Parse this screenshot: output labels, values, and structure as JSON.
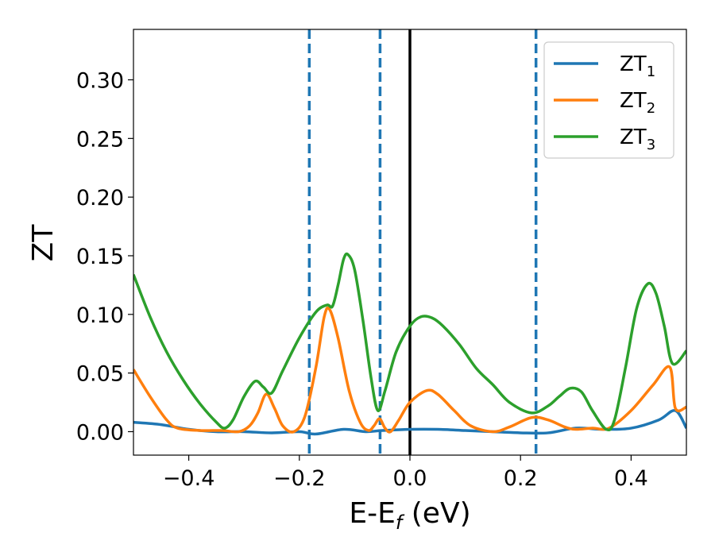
{
  "chart_data": {
    "type": "line",
    "xlabel": "E-E",
    "xlabel_sub": "f",
    "xlabel_unit": " (eV)",
    "ylabel": "ZT",
    "xlim": [
      -0.5,
      0.5
    ],
    "ylim": [
      -0.02,
      0.343
    ],
    "xticks": [
      -0.4,
      -0.2,
      0.0,
      0.2,
      0.4
    ],
    "xtick_labels": [
      "−0.4",
      "−0.2",
      "0.0",
      "0.2",
      "0.4"
    ],
    "yticks": [
      0.0,
      0.05,
      0.1,
      0.15,
      0.2,
      0.25,
      0.3
    ],
    "ytick_labels": [
      "0.00",
      "0.05",
      "0.10",
      "0.15",
      "0.20",
      "0.25",
      "0.30"
    ],
    "grid": false,
    "legend_position": "top-right",
    "vlines": [
      {
        "x": -0.182,
        "style": "dashed",
        "color": "#1f77b4"
      },
      {
        "x": -0.054,
        "style": "dashed",
        "color": "#1f77b4"
      },
      {
        "x": 0.0,
        "style": "solid",
        "color": "#000000"
      },
      {
        "x": 0.228,
        "style": "dashed",
        "color": "#1f77b4"
      }
    ],
    "series": [
      {
        "name": "ZT",
        "name_sub": "1",
        "color": "#1f77b4",
        "points": [
          [
            -0.5,
            0.008
          ],
          [
            -0.45,
            0.006
          ],
          [
            -0.4,
            0.002
          ],
          [
            -0.35,
            0.0
          ],
          [
            -0.3,
            0.0
          ],
          [
            -0.25,
            -0.001
          ],
          [
            -0.2,
            0.0
          ],
          [
            -0.17,
            -0.002
          ],
          [
            -0.12,
            0.002
          ],
          [
            -0.08,
            0.0
          ],
          [
            -0.05,
            0.001
          ],
          [
            0.0,
            0.002
          ],
          [
            0.05,
            0.002
          ],
          [
            0.1,
            0.001
          ],
          [
            0.15,
            0.0
          ],
          [
            0.2,
            -0.001
          ],
          [
            0.25,
            -0.001
          ],
          [
            0.3,
            0.003
          ],
          [
            0.35,
            0.002
          ],
          [
            0.4,
            0.003
          ],
          [
            0.45,
            0.01
          ],
          [
            0.48,
            0.018
          ],
          [
            0.5,
            0.003
          ]
        ]
      },
      {
        "name": "ZT",
        "name_sub": "2",
        "color": "#ff7f0e",
        "points": [
          [
            -0.5,
            0.053
          ],
          [
            -0.47,
            0.03
          ],
          [
            -0.44,
            0.01
          ],
          [
            -0.42,
            0.003
          ],
          [
            -0.38,
            0.001
          ],
          [
            -0.34,
            0.001
          ],
          [
            -0.31,
            0.0
          ],
          [
            -0.29,
            0.005
          ],
          [
            -0.275,
            0.016
          ],
          [
            -0.26,
            0.032
          ],
          [
            -0.245,
            0.02
          ],
          [
            -0.23,
            0.005
          ],
          [
            -0.21,
            0.0
          ],
          [
            -0.19,
            0.013
          ],
          [
            -0.17,
            0.055
          ],
          [
            -0.155,
            0.098
          ],
          [
            -0.145,
            0.104
          ],
          [
            -0.13,
            0.08
          ],
          [
            -0.11,
            0.035
          ],
          [
            -0.09,
            0.008
          ],
          [
            -0.075,
            0.001
          ],
          [
            -0.065,
            0.005
          ],
          [
            -0.055,
            0.011
          ],
          [
            -0.045,
            0.003
          ],
          [
            -0.035,
            0.0
          ],
          [
            -0.02,
            0.01
          ],
          [
            0.0,
            0.025
          ],
          [
            0.03,
            0.035
          ],
          [
            0.05,
            0.032
          ],
          [
            0.08,
            0.018
          ],
          [
            0.11,
            0.005
          ],
          [
            0.15,
            0.0
          ],
          [
            0.18,
            0.004
          ],
          [
            0.22,
            0.012
          ],
          [
            0.25,
            0.01
          ],
          [
            0.28,
            0.004
          ],
          [
            0.3,
            0.002
          ],
          [
            0.33,
            0.003
          ],
          [
            0.36,
            0.003
          ],
          [
            0.4,
            0.018
          ],
          [
            0.44,
            0.04
          ],
          [
            0.47,
            0.055
          ],
          [
            0.48,
            0.02
          ],
          [
            0.5,
            0.021
          ]
        ]
      },
      {
        "name": "ZT",
        "name_sub": "3",
        "color": "#2ca02c",
        "points": [
          [
            -0.5,
            0.134
          ],
          [
            -0.47,
            0.098
          ],
          [
            -0.44,
            0.068
          ],
          [
            -0.41,
            0.044
          ],
          [
            -0.38,
            0.024
          ],
          [
            -0.35,
            0.008
          ],
          [
            -0.335,
            0.003
          ],
          [
            -0.32,
            0.01
          ],
          [
            -0.3,
            0.03
          ],
          [
            -0.28,
            0.043
          ],
          [
            -0.265,
            0.038
          ],
          [
            -0.25,
            0.033
          ],
          [
            -0.23,
            0.052
          ],
          [
            -0.2,
            0.08
          ],
          [
            -0.17,
            0.102
          ],
          [
            -0.15,
            0.108
          ],
          [
            -0.14,
            0.107
          ],
          [
            -0.13,
            0.125
          ],
          [
            -0.12,
            0.147
          ],
          [
            -0.112,
            0.151
          ],
          [
            -0.1,
            0.138
          ],
          [
            -0.085,
            0.095
          ],
          [
            -0.07,
            0.045
          ],
          [
            -0.058,
            0.018
          ],
          [
            -0.045,
            0.035
          ],
          [
            -0.025,
            0.068
          ],
          [
            0.0,
            0.09
          ],
          [
            0.02,
            0.098
          ],
          [
            0.04,
            0.097
          ],
          [
            0.06,
            0.09
          ],
          [
            0.09,
            0.074
          ],
          [
            0.12,
            0.054
          ],
          [
            0.15,
            0.04
          ],
          [
            0.18,
            0.025
          ],
          [
            0.22,
            0.016
          ],
          [
            0.25,
            0.022
          ],
          [
            0.27,
            0.03
          ],
          [
            0.29,
            0.037
          ],
          [
            0.31,
            0.034
          ],
          [
            0.33,
            0.018
          ],
          [
            0.355,
            0.002
          ],
          [
            0.37,
            0.01
          ],
          [
            0.39,
            0.055
          ],
          [
            0.41,
            0.105
          ],
          [
            0.43,
            0.126
          ],
          [
            0.445,
            0.118
          ],
          [
            0.46,
            0.09
          ],
          [
            0.475,
            0.058
          ],
          [
            0.5,
            0.069
          ]
        ]
      }
    ]
  }
}
